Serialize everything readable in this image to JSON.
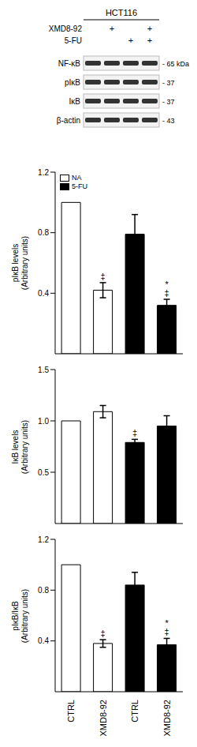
{
  "blot": {
    "cell_line": "HCT116",
    "treatments": [
      {
        "name": "XMD8-92",
        "lanes": [
          null,
          "+",
          null,
          "+"
        ]
      },
      {
        "name": "5-FU",
        "lanes": [
          null,
          null,
          "+",
          "+"
        ]
      }
    ],
    "bands": [
      {
        "name": "NF-κB",
        "size": "- 65 kDa"
      },
      {
        "name": "pIκB",
        "size": "- 37"
      },
      {
        "name": "IκB",
        "size": "- 37"
      },
      {
        "name": "β-actin",
        "size": "- 43"
      }
    ]
  },
  "chart_data": [
    {
      "type": "bar",
      "ylabel": [
        "pIκB levels",
        "(Arbitrary units)"
      ],
      "categories": [
        "CTRL",
        "XMD8-92",
        "CTRL",
        "XMD8-92"
      ],
      "tick_labels": "y",
      "legend": "upper left",
      "ylim": [
        0,
        1.2
      ],
      "yticks": [
        0.4,
        0.8,
        1.2
      ],
      "series": [
        {
          "name": "NA",
          "color": "#ffffff",
          "values": [
            1.0,
            0.42,
            null,
            null
          ],
          "errors": [
            null,
            0.05,
            null,
            null
          ],
          "marks": [
            null,
            [
              "‡"
            ],
            null,
            null
          ]
        },
        {
          "name": "5-FU",
          "color": "#000000",
          "values": [
            null,
            null,
            0.79,
            0.32
          ],
          "errors": [
            null,
            null,
            0.13,
            0.04
          ],
          "marks": [
            null,
            null,
            null,
            [
              "‡",
              "*"
            ]
          ]
        }
      ]
    },
    {
      "type": "bar",
      "ylabel": [
        "IκB levels",
        "(Arbitrary units)"
      ],
      "categories": [
        "CTRL",
        "XMD8-92",
        "CTRL",
        "XMD8-92"
      ],
      "tick_labels": "y",
      "ylim": [
        0,
        1.5
      ],
      "yticks": [
        0.5,
        {
          "value": 1,
          "label": "1.0"
        },
        1.5
      ],
      "series": [
        {
          "name": "NA",
          "color": "#ffffff",
          "values": [
            1.0,
            1.09,
            null,
            null
          ],
          "errors": [
            null,
            0.06,
            null,
            null
          ],
          "marks": [
            null,
            null,
            null,
            null
          ]
        },
        {
          "name": "5-FU",
          "color": "#000000",
          "values": [
            null,
            null,
            0.79,
            0.95
          ],
          "errors": [
            null,
            null,
            0.03,
            0.1
          ],
          "marks": [
            null,
            null,
            [
              "‡"
            ],
            null
          ]
        }
      ]
    },
    {
      "type": "bar",
      "ylabel": [
        "pIκB/IκB",
        "(Arbitrary units)"
      ],
      "categories": [
        "CTRL",
        "XMD8-92",
        "CTRL",
        "XMD8-92"
      ],
      "ylim": [
        0,
        1.2
      ],
      "yticks": [
        0.4,
        0.8,
        1.2
      ],
      "series": [
        {
          "name": "NA",
          "color": "#ffffff",
          "values": [
            1.0,
            0.38,
            null,
            null
          ],
          "errors": [
            null,
            0.03,
            null,
            null
          ],
          "marks": [
            null,
            [
              "‡"
            ],
            null,
            null
          ]
        },
        {
          "name": "5-FU",
          "color": "#000000",
          "values": [
            null,
            null,
            0.84,
            0.37
          ],
          "errors": [
            null,
            null,
            0.1,
            0.05
          ],
          "marks": [
            null,
            null,
            null,
            [
              "‡",
              "*"
            ]
          ]
        }
      ]
    }
  ]
}
